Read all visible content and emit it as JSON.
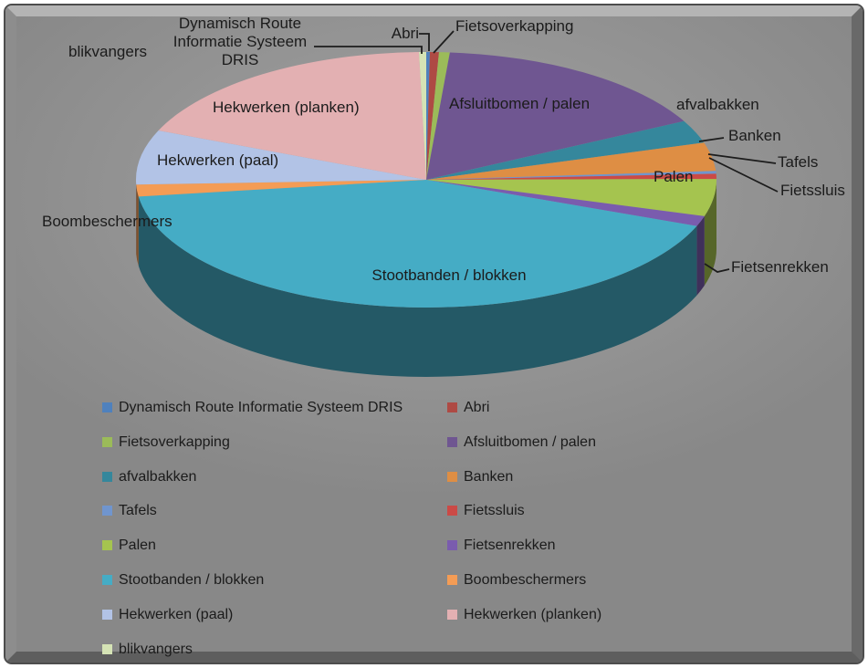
{
  "chart_data": {
    "type": "pie",
    "is_3d": true,
    "title": "",
    "legend_position": "bottom",
    "background_color": "#909090",
    "frame_border_color": "#4d4d4d",
    "label_text_color": "#1b1b1b",
    "categories": [
      "Dynamisch Route Informatie Systeem DRIS",
      "Abri",
      "Fietsoverkapping",
      "Afsluitbomen / palen",
      "afvalbakken",
      "Banken",
      "Tafels",
      "Fietssluis",
      "Palen",
      "Fietsenrekken",
      "Stootbanden / blokken",
      "Boombeschermers",
      "Hekwerken (paal)",
      "Hekwerken (planken)",
      "blikvangers"
    ],
    "values_pct": [
      0.2,
      0.5,
      0.6,
      16.1,
      2.9,
      3.6,
      0.35,
      0.65,
      4.7,
      1.3,
      42.0,
      1.5,
      6.9,
      18.3,
      0.4
    ],
    "colors": [
      "#4F81BD",
      "#AE4A44",
      "#9BBB59",
      "#6F5691",
      "#35879C",
      "#DE8E44",
      "#7095CE",
      "#CB4A46",
      "#A5C44F",
      "#7A5CAE",
      "#45ACC5",
      "#F49C55",
      "#B2C3E6",
      "#E3B0B2",
      "#D5E3B5"
    ]
  }
}
